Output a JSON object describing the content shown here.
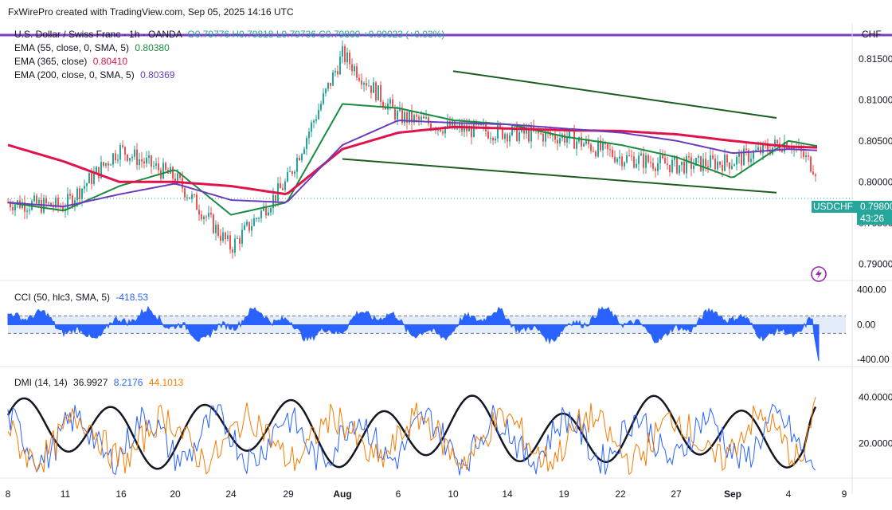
{
  "header": {
    "credit": "FxWirePro created with TradingView.com, Sep 05, 2025 14:16 UTC",
    "symbol_line": "U.S. Dollar / Swiss Franc · 1h · OANDA",
    "ohlc": "O0.79776 H0.79818 L0.79736 C0.79800 +0.00023 (+0.03%)",
    "currency": "CHF"
  },
  "legend": {
    "ema55": {
      "label": "EMA (55, close, 0, SMA, 5)",
      "value": "0.80380",
      "color": "#1a8c3f"
    },
    "ema365": {
      "label": "EMA (365, close)",
      "value": "0.80410",
      "color": "#e0144c"
    },
    "ema200": {
      "label": "EMA (200, close, 0, SMA, 5)",
      "value": "0.80369",
      "color": "#6a3cbc"
    }
  },
  "price_tag": {
    "symbol": "USDCHF",
    "price": "0.79800",
    "countdown": "43:26",
    "color": "#26a69a"
  },
  "cci_legend": {
    "label": "CCI (50, hlc3, SMA, 5)",
    "value": "-418.53",
    "color": "#2962ff"
  },
  "dmi_legend": {
    "label": "DMI (14, 14)",
    "adx": "36.9927",
    "plus_di": "8.2176",
    "minus_di": "44.1013",
    "adx_color": "#131722",
    "plus_color": "#2962ff",
    "minus_color": "#f57c00"
  },
  "chart_data": [
    {
      "type": "line",
      "title": "U.S. Dollar / Swiss Franc · 1h · OANDA",
      "x_ticks": [
        "8",
        "11",
        "16",
        "20",
        "24",
        "29",
        "Aug",
        "6",
        "10",
        "14",
        "19",
        "22",
        "27",
        "Sep",
        "4",
        "9"
      ],
      "y_ticks": [
        "0.81500",
        "0.81000",
        "0.80500",
        "0.80000",
        "0.79500",
        "0.79000"
      ],
      "ylim": [
        0.788,
        0.8175
      ],
      "grid": false,
      "series": [
        {
          "name": "USDCHF",
          "x": [
            "8",
            "11",
            "16",
            "20",
            "24",
            "29",
            "Aug",
            "6",
            "10",
            "14",
            "19",
            "22",
            "27",
            "Sep",
            "4",
            "9"
          ],
          "values": [
            0.7975,
            0.797,
            0.804,
            0.8005,
            0.792,
            0.8,
            0.8155,
            0.808,
            0.8065,
            0.806,
            0.8055,
            0.803,
            0.802,
            0.8025,
            0.805,
            0.798
          ]
        },
        {
          "name": "EMA (55, close, 0, SMA, 5)",
          "values": [
            0.7975,
            0.7965,
            0.7995,
            0.8015,
            0.796,
            0.7975,
            0.8095,
            0.809,
            0.8075,
            0.807,
            0.8055,
            0.8045,
            0.803,
            0.8005,
            0.805,
            0.8038
          ]
        },
        {
          "name": "EMA (365, close)",
          "values": [
            0.8045,
            0.8025,
            0.8,
            0.8,
            0.7995,
            0.7985,
            0.804,
            0.806,
            0.8067,
            0.8065,
            0.8063,
            0.8062,
            0.8058,
            0.805,
            0.8043,
            0.8041
          ]
        },
        {
          "name": "EMA (200, close, 0, SMA, 5)",
          "values": [
            0.7975,
            0.797,
            0.7985,
            0.7998,
            0.7978,
            0.7975,
            0.8045,
            0.8075,
            0.8072,
            0.807,
            0.8065,
            0.806,
            0.805,
            0.8035,
            0.804,
            0.8037
          ]
        }
      ],
      "trendlines": [
        {
          "from": [
            "10",
            0.8135
          ],
          "to": [
            "4",
            0.8078
          ]
        },
        {
          "from": [
            "Aug",
            0.8028
          ],
          "to": [
            "4",
            0.7987
          ]
        }
      ],
      "last_price": 0.798
    },
    {
      "type": "area",
      "title": "CCI (50, hlc3, SMA, 5)",
      "y_ticks": [
        "400.00",
        "0.00",
        "-400.00"
      ],
      "ylim": [
        -480,
        470
      ],
      "bands": [
        100,
        -100
      ],
      "last_value": -418.53
    },
    {
      "type": "line",
      "title": "DMI (14, 14)",
      "y_ticks": [
        "40.0000",
        "20.0000"
      ],
      "ylim": [
        5,
        52
      ],
      "series": [
        {
          "name": "ADX",
          "last": 36.9927
        },
        {
          "name": "+DI",
          "last": 8.2176
        },
        {
          "name": "-DI",
          "last": 44.1013
        }
      ]
    }
  ]
}
